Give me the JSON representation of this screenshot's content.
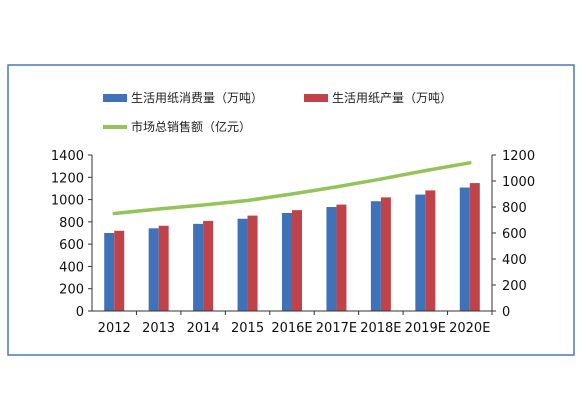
{
  "chart_data": {
    "type": "bar",
    "title": "",
    "categories": [
      "2012",
      "2013",
      "2014",
      "2015",
      "2016E",
      "2017E",
      "2018E",
      "2019E",
      "2020E"
    ],
    "series": [
      {
        "name": "生活用纸消费量（万吨）",
        "type": "bar",
        "axis": "left",
        "color": "#3f72b8",
        "values": [
          700,
          742,
          782,
          828,
          880,
          933,
          985,
          1045,
          1108
        ]
      },
      {
        "name": "生活用纸产量（万吨）",
        "type": "bar",
        "axis": "left",
        "color": "#c0434a",
        "values": [
          720,
          765,
          808,
          856,
          905,
          955,
          1020,
          1082,
          1148
        ]
      },
      {
        "name": "市场总销售额（亿元）",
        "type": "line",
        "axis": "right",
        "color": "#93c35a",
        "values": [
          750,
          785,
          815,
          850,
          900,
          955,
          1015,
          1080,
          1140
        ]
      }
    ],
    "y_left": {
      "min": 0,
      "max": 1400,
      "step": 200,
      "ticks": [
        "0",
        "200",
        "400",
        "600",
        "800",
        "1000",
        "1200",
        "1400"
      ]
    },
    "y_right": {
      "min": 0,
      "max": 1200,
      "step": 200,
      "ticks": [
        "0",
        "200",
        "400",
        "600",
        "800",
        "1000",
        "1200"
      ]
    },
    "xlabel": "",
    "ylabel": "",
    "grid": false,
    "legend_position": "top-left"
  },
  "colors": {
    "frame": "#4a7ab5",
    "axis": "#333333"
  }
}
